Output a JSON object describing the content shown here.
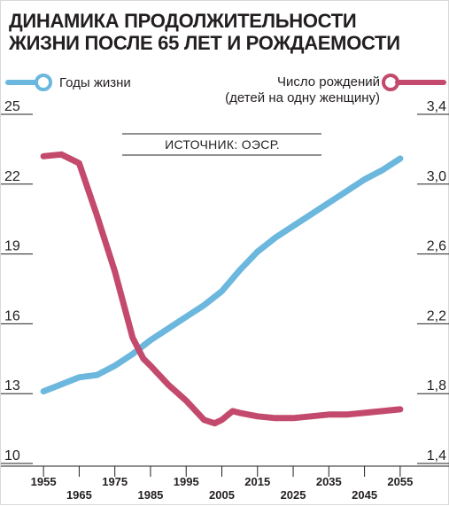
{
  "chart_data": {
    "type": "line",
    "title": "ДИНАМИКА ПРОДОЛЖИТЕЛЬНОСТИ",
    "subtitle": "ЖИЗНИ ПОСЛЕ 65 ЛЕТ И РОЖДАЕМОСТИ",
    "source": "ИСТОЧНИК: ОЭСР.",
    "x_ticks_top": [
      "1955",
      "1975",
      "1995",
      "2015",
      "2035",
      "2055"
    ],
    "x_ticks_bottom": [
      "1965",
      "1985",
      "2005",
      "2025",
      "2045"
    ],
    "x_tick_values": [
      1955,
      1965,
      1975,
      1985,
      1995,
      2005,
      2015,
      2025,
      2035,
      2045,
      2055
    ],
    "xlim": [
      1950,
      2060
    ],
    "y_left": {
      "ticks": [
        "25",
        "22",
        "19",
        "16",
        "13",
        "10"
      ],
      "ylim": [
        10,
        25
      ]
    },
    "y_right": {
      "ticks": [
        "3,4",
        "3,0",
        "2,6",
        "2,2",
        "1,8",
        "1,4"
      ],
      "ylim": [
        1.4,
        3.4
      ]
    },
    "legend_position": "top",
    "series": [
      {
        "name": "Годы жизни",
        "axis": "left",
        "color": "#6bb7de",
        "x": [
          1955,
          1960,
          1965,
          1970,
          1975,
          1980,
          1985,
          1990,
          1995,
          2000,
          2005,
          2010,
          2015,
          2020,
          2025,
          2030,
          2035,
          2040,
          2045,
          2050,
          2055
        ],
        "values": [
          13.1,
          13.4,
          13.7,
          13.8,
          14.2,
          14.7,
          15.3,
          15.8,
          16.3,
          16.8,
          17.4,
          18.3,
          19.1,
          19.7,
          20.2,
          20.7,
          21.2,
          21.7,
          22.2,
          22.6,
          23.1
        ]
      },
      {
        "name": "Число рождений",
        "name_line2": "(детей на одну женщину)",
        "axis": "right",
        "color": "#c34a6c",
        "x": [
          1955,
          1960,
          1965,
          1970,
          1975,
          1980,
          1983,
          1985,
          1990,
          1995,
          2000,
          2003,
          2005,
          2008,
          2010,
          2015,
          2020,
          2025,
          2030,
          2035,
          2040,
          2045,
          2050,
          2055
        ],
        "values": [
          3.16,
          3.17,
          3.12,
          2.82,
          2.5,
          2.12,
          2.0,
          1.96,
          1.85,
          1.76,
          1.65,
          1.63,
          1.65,
          1.7,
          1.69,
          1.67,
          1.66,
          1.66,
          1.67,
          1.68,
          1.68,
          1.69,
          1.7,
          1.71
        ]
      }
    ],
    "grid": false
  }
}
